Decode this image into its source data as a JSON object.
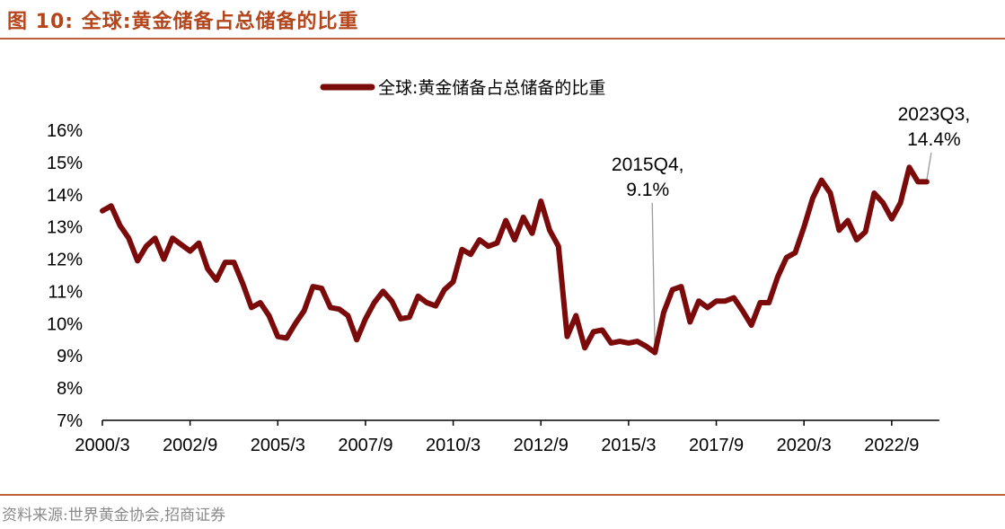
{
  "header": {
    "figure_title": "图 10:  全球:黄金储备占总储备的比重"
  },
  "source": "资料来源:世界黄金协会,招商证券",
  "colors": {
    "series": "#7b0a0a",
    "accent": "#b5451b",
    "rule": "#c0603a",
    "axis": "#000000",
    "annotation_line": "#9a9a9a"
  },
  "chart_data": {
    "type": "line",
    "title": "",
    "xlabel": "",
    "ylabel": "",
    "ylim": [
      7,
      16
    ],
    "y_ticks": [
      7,
      8,
      9,
      10,
      11,
      12,
      13,
      14,
      15,
      16
    ],
    "y_tick_labels": [
      "7%",
      "8%",
      "9%",
      "10%",
      "11%",
      "12%",
      "13%",
      "14%",
      "15%",
      "16%"
    ],
    "x_tick_labels": [
      "2000/3",
      "2002/9",
      "2005/3",
      "2007/9",
      "2010/3",
      "2012/9",
      "2015/3",
      "2017/9",
      "2020/3",
      "2022/9"
    ],
    "grid": false,
    "legend": {
      "placement": "top-center",
      "entries": [
        "全球:黄金储备占总储备的比重"
      ]
    },
    "series": [
      {
        "name": "全球:黄金储备占总储备的比重",
        "x": [
          "2000Q1",
          "2000Q2",
          "2000Q3",
          "2000Q4",
          "2001Q1",
          "2001Q2",
          "2001Q3",
          "2001Q4",
          "2002Q1",
          "2002Q2",
          "2002Q3",
          "2002Q4",
          "2003Q1",
          "2003Q2",
          "2003Q3",
          "2003Q4",
          "2004Q1",
          "2004Q2",
          "2004Q3",
          "2004Q4",
          "2005Q1",
          "2005Q2",
          "2005Q3",
          "2005Q4",
          "2006Q1",
          "2006Q2",
          "2006Q3",
          "2006Q4",
          "2007Q1",
          "2007Q2",
          "2007Q3",
          "2007Q4",
          "2008Q1",
          "2008Q2",
          "2008Q3",
          "2008Q4",
          "2009Q1",
          "2009Q2",
          "2009Q3",
          "2009Q4",
          "2010Q1",
          "2010Q2",
          "2010Q3",
          "2010Q4",
          "2011Q1",
          "2011Q2",
          "2011Q3",
          "2011Q4",
          "2012Q1",
          "2012Q2",
          "2012Q3",
          "2012Q4",
          "2013Q1",
          "2013Q2",
          "2013Q3",
          "2013Q4",
          "2014Q1",
          "2014Q2",
          "2014Q3",
          "2014Q4",
          "2015Q1",
          "2015Q2",
          "2015Q3",
          "2015Q4",
          "2016Q1",
          "2016Q2",
          "2016Q3",
          "2016Q4",
          "2017Q1",
          "2017Q2",
          "2017Q3",
          "2017Q4",
          "2018Q1",
          "2018Q2",
          "2018Q3",
          "2018Q4",
          "2019Q1",
          "2019Q2",
          "2019Q3",
          "2019Q4",
          "2020Q1",
          "2020Q2",
          "2020Q3",
          "2020Q4",
          "2021Q1",
          "2021Q2",
          "2021Q3",
          "2021Q4",
          "2022Q1",
          "2022Q2",
          "2022Q3",
          "2022Q4",
          "2023Q1",
          "2023Q2",
          "2023Q3"
        ],
        "values": [
          13.5,
          13.65,
          13.05,
          12.65,
          11.95,
          12.4,
          12.65,
          12.0,
          12.65,
          12.45,
          12.25,
          12.5,
          11.7,
          11.35,
          11.9,
          11.9,
          11.25,
          10.5,
          10.65,
          10.25,
          9.6,
          9.55,
          10.0,
          10.4,
          11.15,
          11.1,
          10.5,
          10.45,
          10.25,
          9.5,
          10.15,
          10.65,
          11.0,
          10.7,
          10.15,
          10.2,
          10.85,
          10.65,
          10.55,
          11.05,
          11.3,
          12.3,
          12.15,
          12.6,
          12.4,
          12.5,
          13.2,
          12.6,
          13.3,
          12.8,
          13.8,
          12.9,
          12.4,
          9.6,
          10.25,
          9.25,
          9.75,
          9.8,
          9.4,
          9.45,
          9.4,
          9.45,
          9.3,
          9.1,
          10.35,
          11.05,
          11.15,
          10.05,
          10.7,
          10.5,
          10.7,
          10.7,
          10.8,
          10.4,
          9.95,
          10.65,
          10.65,
          11.45,
          12.05,
          12.2,
          13.0,
          13.9,
          14.45,
          14.05,
          12.9,
          13.2,
          12.6,
          12.85,
          14.05,
          13.75,
          13.25,
          13.75,
          14.85,
          14.4,
          14.4
        ]
      }
    ],
    "annotations": [
      {
        "point": "2015Q4",
        "value": 9.1,
        "line1": "2015Q4,",
        "line2": "9.1%"
      },
      {
        "point": "2023Q3",
        "value": 14.4,
        "line1": "2023Q3,",
        "line2": "14.4%"
      }
    ]
  }
}
